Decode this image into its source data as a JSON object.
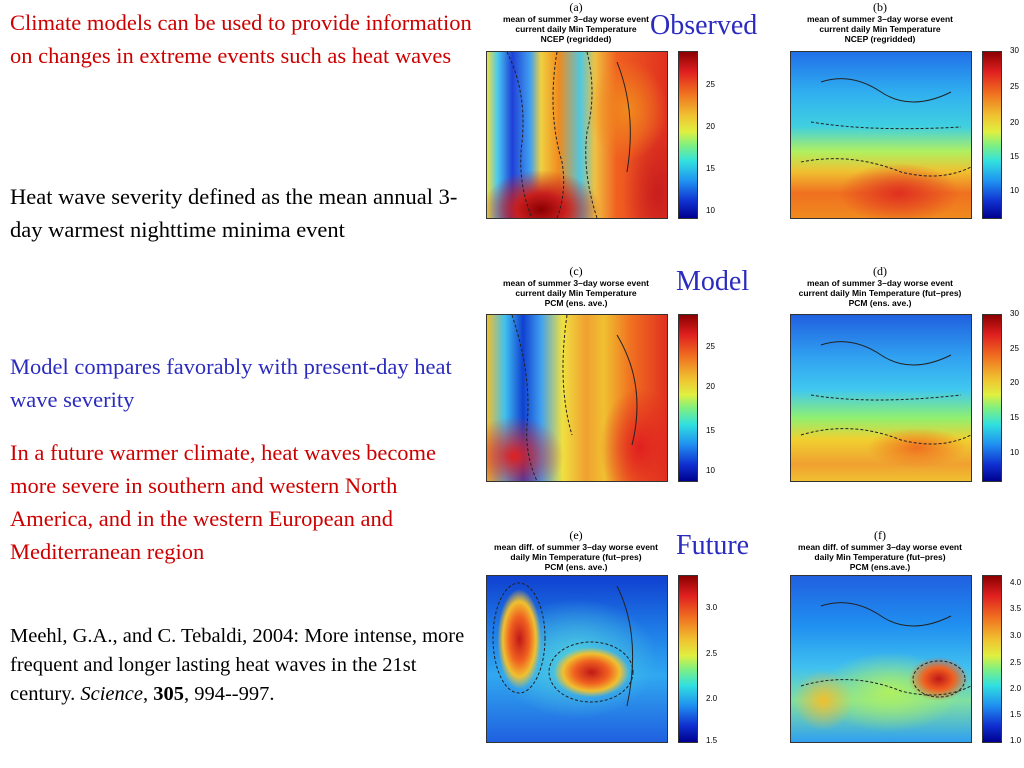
{
  "text": {
    "p1": "Climate models can be used to provide information on changes in extreme events such as heat waves",
    "p2": "Heat wave severity defined as the mean annual 3-day warmest nighttime minima event",
    "p3": "Model compares favorably with present-day heat wave severity",
    "p4": "In a future warmer climate, heat waves become more severe in southern and western North America, and in the western European and Mediterranean region",
    "cite_authors": "Meehl, G.A., and C. Tebaldi, 2004:  More intense, more frequent and longer lasting heat waves in the 21st century.  ",
    "cite_journal": "Science",
    "cite_sep": ", ",
    "cite_volume": "305",
    "cite_pages": ", 994--997."
  },
  "row_labels": {
    "observed": "Observed",
    "model": "Model",
    "future": "Future"
  },
  "panels": {
    "a": {
      "label": "(a)",
      "t1": "mean of summer 3–day worse event",
      "t2": "current daily Min Temperature",
      "t3": "NCEP (regridded)",
      "ticks": [
        "25",
        "20",
        "15",
        "10"
      ]
    },
    "b": {
      "label": "(b)",
      "t1": "mean of summer 3–day worse event",
      "t2": "current daily Min Temperature",
      "t3": "NCEP (regridded)",
      "ticks": [
        "30",
        "25",
        "20",
        "15",
        "10"
      ]
    },
    "c": {
      "label": "(c)",
      "t1": "mean of summer 3–day worse event",
      "t2": "current daily Min Temperature",
      "t3": "PCM (ens. ave.)",
      "ticks": [
        "25",
        "20",
        "15",
        "10"
      ]
    },
    "d": {
      "label": "(d)",
      "t1": "mean of summer 3–day worse event",
      "t2": "current daily Min Temperature (fut–pres)",
      "t3": "PCM (ens. ave.)",
      "ticks": [
        "30",
        "25",
        "20",
        "15",
        "10"
      ]
    },
    "e": {
      "label": "(e)",
      "t1": "mean diff. of summer 3–day worse event",
      "t2": "daily Min Temperature (fut–pres)",
      "t3": "PCM (ens. ave.)",
      "ticks": [
        "3.0",
        "2.5",
        "2.0",
        "1.5"
      ]
    },
    "f": {
      "label": "(f)",
      "t1": "mean diff. of summer 3–day worse event",
      "t2": "daily Min Temperature (fut–pres)",
      "t3": "PCM (ens.ave.)",
      "ticks": [
        "4.0",
        "3.5",
        "3.0",
        "2.5",
        "2.0",
        "1.5",
        "1.0"
      ]
    }
  },
  "colors": {
    "title_red": "#cc0000",
    "text_blue": "#2b2bbf"
  }
}
